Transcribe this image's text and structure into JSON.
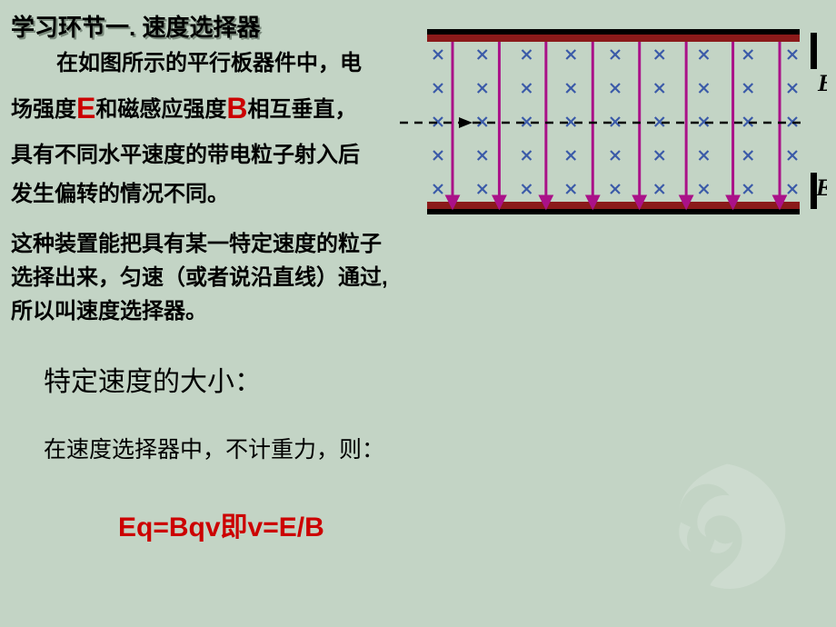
{
  "title": "学习环节一. 速度选择器",
  "para1_pre": "在如图所示的平行板器件中，电场强度",
  "letter_E": "E",
  "para1_mid": "和磁感应强度",
  "letter_B": "B",
  "para1_post": "相互垂直，具有不同水平速度的带电粒子射入后发生偏转的情况不同。",
  "para2": "这种装置能把具有某一特定速度的粒子选择出来，匀速（或者说沿直线）通过, 所以叫速度选择器。",
  "heading2": "特定速度的大小：",
  "para3": "在速度选择器中，不计重力，则：",
  "formula": "Eq=Bqv即v=E/B",
  "diagram": {
    "top_plate_color": "#8b1a1a",
    "bottom_plate_color": "#8b1a1a",
    "plate_highlight": "#000000",
    "arrow_color": "#aa1188",
    "cross_color": "#3a5aa8",
    "label_B": "B",
    "label_E": "E",
    "num_field_lines": 8,
    "num_cross_rows": 5,
    "num_cross_cols": 9
  },
  "colors": {
    "bg": "#c3d4c5",
    "text": "#000000",
    "red": "#cc0000",
    "watermark": "#6a836b"
  }
}
